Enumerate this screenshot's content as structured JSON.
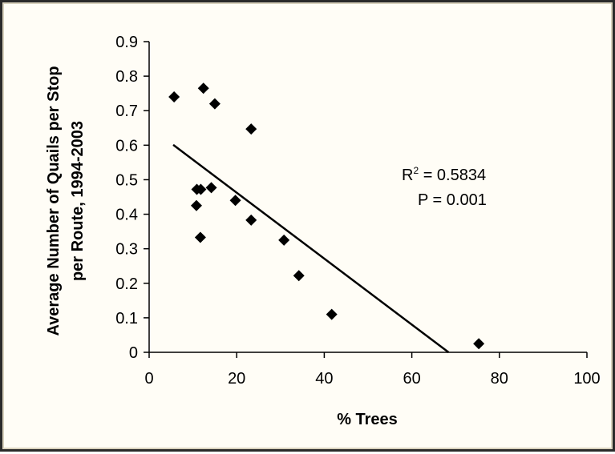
{
  "chart_data": {
    "type": "scatter",
    "xlabel": "% Trees",
    "ylabel_lines": [
      "Average Number of Quails per Stop",
      "per Route, 1994-2003"
    ],
    "xlim": [
      0,
      100
    ],
    "ylim": [
      0,
      0.9
    ],
    "x_ticks": [
      "0",
      "20",
      "40",
      "60",
      "80",
      "100"
    ],
    "y_ticks": [
      "0",
      "0.1",
      "0.2",
      "0.3",
      "0.4",
      "0.5",
      "0.6",
      "0.7",
      "0.8",
      "0.9"
    ],
    "grid": false,
    "points": [
      {
        "x": 5.7,
        "y": 0.74
      },
      {
        "x": 12.4,
        "y": 0.765
      },
      {
        "x": 15.0,
        "y": 0.72
      },
      {
        "x": 23.3,
        "y": 0.647
      },
      {
        "x": 10.9,
        "y": 0.472
      },
      {
        "x": 11.8,
        "y": 0.472
      },
      {
        "x": 14.2,
        "y": 0.477
      },
      {
        "x": 10.8,
        "y": 0.425
      },
      {
        "x": 19.7,
        "y": 0.44
      },
      {
        "x": 23.3,
        "y": 0.383
      },
      {
        "x": 11.7,
        "y": 0.333
      },
      {
        "x": 30.8,
        "y": 0.325
      },
      {
        "x": 34.2,
        "y": 0.222
      },
      {
        "x": 41.7,
        "y": 0.11
      },
      {
        "x": 75.3,
        "y": 0.025
      }
    ],
    "trendline": {
      "x_start": 5.5,
      "y_start": 0.601,
      "x_end": 68.4,
      "y_end": 0.0
    },
    "annotation": {
      "r2_prefix": "R",
      "r2_sup": "2",
      "r2_suffix": " = 0.5834",
      "p_text": "P = 0.001"
    },
    "colors": {
      "marker": "#000000",
      "line": "#000000",
      "frame": "#2a2a2a"
    }
  }
}
